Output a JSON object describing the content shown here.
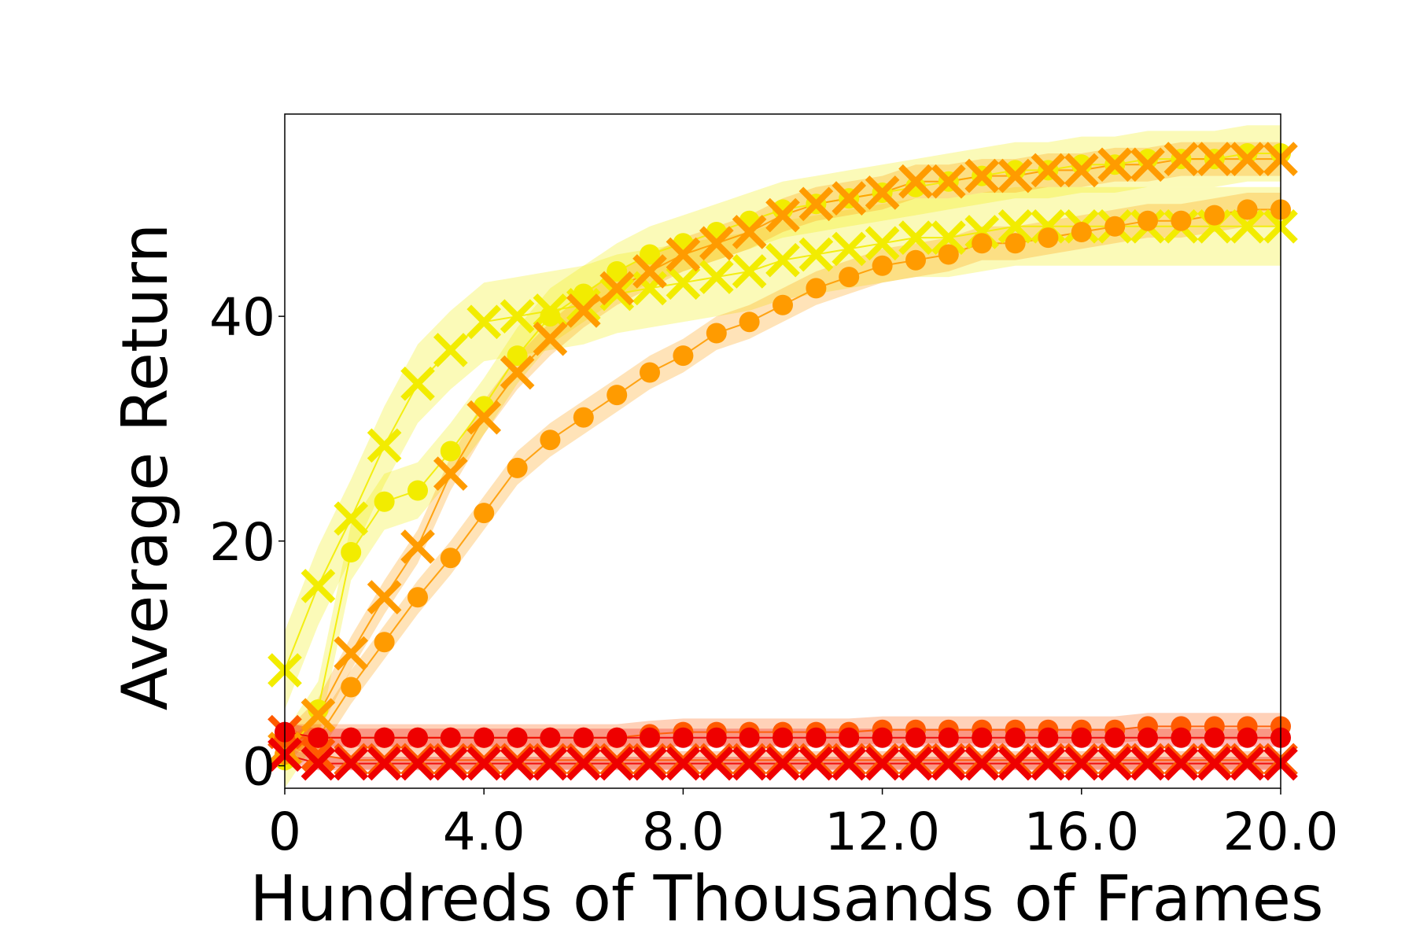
{
  "chart_data": {
    "type": "line",
    "title": "",
    "xlabel": "Hundreds of Thousands of Frames",
    "ylabel": "Average Return",
    "xlim": [
      0,
      20
    ],
    "ylim": [
      -2,
      58
    ],
    "xticks": [
      0,
      4,
      8,
      12,
      16,
      20
    ],
    "xtick_labels": [
      "0",
      "4.0",
      "8.0",
      "12.0",
      "16.0",
      "20.0"
    ],
    "yticks": [
      0,
      20,
      40
    ],
    "ytick_labels": [
      "0",
      "20",
      "40"
    ],
    "grid": false,
    "legend": "none",
    "series": [
      {
        "color": "#f2ec00",
        "marker": "x",
        "x": [
          0,
          0.67,
          1.33,
          2.0,
          2.67,
          3.33,
          4.0,
          4.67,
          5.33,
          6.0,
          6.67,
          7.33,
          8.0,
          8.67,
          9.33,
          10.0,
          10.67,
          11.33,
          12.0,
          12.67,
          13.33,
          14.0,
          14.67,
          15.33,
          16.0,
          16.67,
          17.33,
          18.0,
          18.67,
          19.33,
          20.0
        ],
        "y": [
          8.5,
          16,
          22,
          28.5,
          34,
          37,
          39.5,
          40,
          40.5,
          41,
          42,
          42.5,
          43,
          43.5,
          44,
          45,
          45.5,
          46,
          46.5,
          47,
          47,
          47.5,
          48,
          48,
          48,
          48,
          48,
          48,
          48,
          48,
          48
        ],
        "band": 3.5
      },
      {
        "color": "#f2ec00",
        "marker": "o",
        "x": [
          0,
          0.67,
          1.33,
          2.0,
          2.67,
          3.33,
          4.0,
          4.67,
          5.33,
          6.0,
          6.67,
          7.33,
          8.0,
          8.67,
          9.33,
          10.0,
          10.67,
          11.33,
          12.0,
          12.67,
          13.33,
          14.0,
          14.67,
          15.33,
          16.0,
          16.67,
          17.33,
          18.0,
          18.67,
          19.33,
          20.0
        ],
        "y": [
          0.5,
          5,
          19,
          23.5,
          24.5,
          28,
          32,
          36.5,
          40,
          42,
          44,
          45.5,
          46.5,
          47.5,
          48.5,
          49.5,
          50,
          50.5,
          51,
          51.5,
          52,
          52.5,
          53,
          53,
          53.5,
          53.5,
          54,
          54,
          54,
          54.5,
          54.5
        ],
        "band": 2.5
      },
      {
        "color": "#ff9b00",
        "marker": "x",
        "x": [
          0,
          0.67,
          1.33,
          2.0,
          2.67,
          3.33,
          4.0,
          4.67,
          5.33,
          6.0,
          6.67,
          7.33,
          8.0,
          8.67,
          9.33,
          10.0,
          10.67,
          11.33,
          12.0,
          12.67,
          13.33,
          14.0,
          14.67,
          15.33,
          16.0,
          16.67,
          17.33,
          18.0,
          18.67,
          19.33,
          20.0
        ],
        "y": [
          1.5,
          4.5,
          10,
          15,
          19.5,
          26,
          31,
          35,
          38,
          40.5,
          42.5,
          44,
          45.5,
          46.5,
          47.5,
          49,
          50,
          50.5,
          51,
          52,
          52,
          52.5,
          52.5,
          53,
          53,
          53.5,
          53.5,
          54,
          54,
          54,
          54
        ],
        "band": 1.5
      },
      {
        "color": "#ff9b00",
        "marker": "o",
        "x": [
          0,
          0.67,
          1.33,
          2.0,
          2.67,
          3.33,
          4.0,
          4.67,
          5.33,
          6.0,
          6.67,
          7.33,
          8.0,
          8.67,
          9.33,
          10.0,
          10.67,
          11.33,
          12.0,
          12.67,
          13.33,
          14.0,
          14.67,
          15.33,
          16.0,
          16.67,
          17.33,
          18.0,
          18.67,
          19.33,
          20.0
        ],
        "y": [
          1,
          2.5,
          7,
          11,
          15,
          18.5,
          22.5,
          26.5,
          29,
          31,
          33,
          35,
          36.5,
          38.5,
          39.5,
          41,
          42.5,
          43.5,
          44.5,
          45,
          45.5,
          46.5,
          46.5,
          47,
          47.5,
          48,
          48.5,
          48.5,
          49,
          49.5,
          49.5
        ],
        "band": 1.5
      },
      {
        "color": "#ff5a00",
        "marker": "o",
        "x": [
          0,
          0.67,
          1.33,
          2.0,
          2.67,
          3.33,
          4.0,
          4.67,
          5.33,
          6.0,
          6.67,
          7.33,
          8.0,
          8.67,
          9.33,
          10.0,
          10.67,
          11.33,
          12.0,
          12.67,
          13.33,
          14.0,
          14.67,
          15.33,
          16.0,
          16.67,
          17.33,
          18.0,
          18.67,
          19.33,
          20.0
        ],
        "y": [
          2.5,
          2.5,
          2.5,
          2.5,
          2.5,
          2.5,
          2.5,
          2.5,
          2.5,
          2.5,
          2.5,
          2.8,
          3,
          3,
          3,
          3,
          3,
          3,
          3.2,
          3.2,
          3.2,
          3.2,
          3.2,
          3.2,
          3.2,
          3.2,
          3.5,
          3.5,
          3.5,
          3.5,
          3.5
        ],
        "band": 1.2
      },
      {
        "color": "#ff5a00",
        "marker": "x",
        "x": [
          0,
          0.67,
          1.33,
          2.0,
          2.67,
          3.33,
          4.0,
          4.67,
          5.33,
          6.0,
          6.67,
          7.33,
          8.0,
          8.67,
          9.33,
          10.0,
          10.67,
          11.33,
          12.0,
          12.67,
          13.33,
          14.0,
          14.67,
          15.33,
          16.0,
          16.67,
          17.33,
          18.0,
          18.67,
          19.33,
          20.0
        ],
        "y": [
          3,
          1,
          0.5,
          0.5,
          0.5,
          0.5,
          0.5,
          0.5,
          0.5,
          0.5,
          0.5,
          0.5,
          0.5,
          0.5,
          0.5,
          0.5,
          0.5,
          0.5,
          0.5,
          0.5,
          0.5,
          0.5,
          0.5,
          0.5,
          0.5,
          0.5,
          0.5,
          0.5,
          0.5,
          0.5,
          0.5
        ],
        "band": 0.8
      },
      {
        "color": "#ee0000",
        "marker": "o",
        "x": [
          0,
          0.67,
          1.33,
          2.0,
          2.67,
          3.33,
          4.0,
          4.67,
          5.33,
          6.0,
          6.67,
          7.33,
          8.0,
          8.67,
          9.33,
          10.0,
          10.67,
          11.33,
          12.0,
          12.67,
          13.33,
          14.0,
          14.67,
          15.33,
          16.0,
          16.67,
          17.33,
          18.0,
          18.67,
          19.33,
          20.0
        ],
        "y": [
          3,
          2.5,
          2.5,
          2.5,
          2.5,
          2.5,
          2.5,
          2.5,
          2.5,
          2.5,
          2.5,
          2.5,
          2.5,
          2.5,
          2.5,
          2.5,
          2.5,
          2.5,
          2.5,
          2.5,
          2.5,
          2.5,
          2.5,
          2.5,
          2.5,
          2.5,
          2.5,
          2.5,
          2.5,
          2.5,
          2.5
        ],
        "band": 0.8
      },
      {
        "color": "#ee0000",
        "marker": "x",
        "x": [
          0,
          0.67,
          1.33,
          2.0,
          2.67,
          3.33,
          4.0,
          4.67,
          5.33,
          6.0,
          6.67,
          7.33,
          8.0,
          8.67,
          9.33,
          10.0,
          10.67,
          11.33,
          12.0,
          12.67,
          13.33,
          14.0,
          14.67,
          15.33,
          16.0,
          16.67,
          17.33,
          18.0,
          18.67,
          19.33,
          20.0
        ],
        "y": [
          1,
          0.2,
          0.2,
          0.2,
          0.2,
          0.2,
          0.2,
          0.2,
          0.2,
          0.2,
          0.2,
          0.2,
          0.2,
          0.2,
          0.2,
          0.2,
          0.2,
          0.2,
          0.2,
          0.2,
          0.2,
          0.2,
          0.2,
          0.2,
          0.2,
          0.2,
          0.2,
          0.2,
          0.2,
          0.2,
          0.2
        ],
        "band": 0.6
      }
    ]
  }
}
